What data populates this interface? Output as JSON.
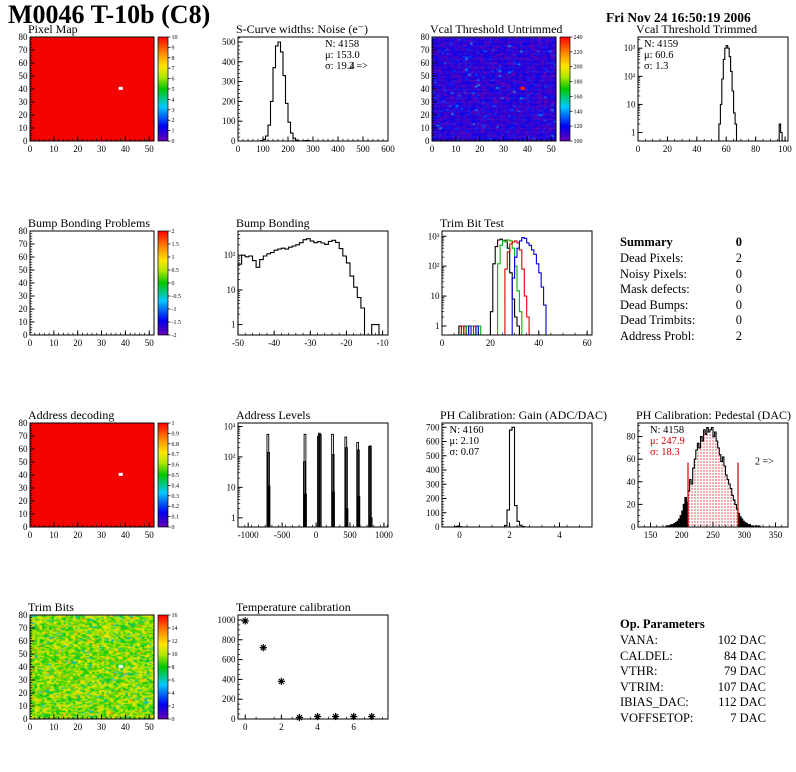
{
  "page": {
    "title": "M0046 T-10b (C8)",
    "date": "Fri Nov 24 16:50:19 2006"
  },
  "summary": {
    "title": "Summary",
    "value": "0",
    "rows": [
      {
        "label": "Dead Pixels:",
        "value": "2"
      },
      {
        "label": "Noisy Pixels:",
        "value": "0"
      },
      {
        "label": "Mask defects:",
        "value": "0"
      },
      {
        "label": "Dead Bumps:",
        "value": "0"
      },
      {
        "label": "Dead Trimbits:",
        "value": "0"
      },
      {
        "label": "Address Probl:",
        "value": "2"
      }
    ]
  },
  "op_parameters": {
    "title": "Op. Parameters",
    "rows": [
      {
        "label": "VANA:",
        "value": "102 DAC"
      },
      {
        "label": "CALDEL:",
        "value": "84 DAC"
      },
      {
        "label": "VTHR:",
        "value": "79 DAC"
      },
      {
        "label": "VTRIM:",
        "value": "107 DAC"
      },
      {
        "label": "IBIAS_DAC:",
        "value": "112 DAC"
      },
      {
        "label": "VOFFSETOP:",
        "value": "7 DAC"
      }
    ]
  },
  "palette": [
    "#6a00b0",
    "#0000f0",
    "#00c8ff",
    "#00c800",
    "#b4e600",
    "#ffe600",
    "#ff8c00",
    "#ff0000"
  ],
  "chart_data": [
    {
      "id": "pixel_map",
      "type": "heatmap",
      "title": "Pixel Map",
      "fill": "#f40400",
      "x": {
        "min": 0,
        "max": 52,
        "ticks": [
          0,
          10,
          20,
          30,
          40,
          50
        ],
        "minor": 2
      },
      "y": {
        "min": 0,
        "max": 80,
        "ticks": [
          0,
          10,
          20,
          30,
          40,
          50,
          60,
          70,
          80
        ],
        "minor": 2
      },
      "defects": [
        {
          "x": 38,
          "y": 40,
          "color": "#ffffff"
        }
      ],
      "colorbar": {
        "min": 0,
        "max": 10,
        "labels": [
          0,
          1,
          2,
          3,
          4,
          5,
          6,
          7,
          8,
          9,
          10
        ]
      }
    },
    {
      "id": "scurve_noise",
      "type": "hist",
      "title": "S-Curve widths: Noise (e⁻)",
      "x": {
        "min": 0,
        "max": 600,
        "ticks": [
          0,
          100,
          200,
          300,
          400,
          500,
          600
        ],
        "minor": 20
      },
      "y": {
        "min": 0,
        "max": 525,
        "ticks": [
          0,
          100,
          200,
          300,
          400,
          500
        ],
        "minor": 20
      },
      "bins": {
        "x0": 90,
        "w": 10,
        "v": [
          2,
          8,
          25,
          80,
          200,
          370,
          480,
          500,
          450,
          330,
          190,
          95,
          40,
          14,
          4,
          1,
          0,
          1,
          2,
          1
        ]
      },
      "stats": {
        "fx": 0.58,
        "lines": [
          {
            "t": "N: 4158",
            "c": "#000000"
          },
          {
            "t": "μ: 153.0",
            "c": "#000000"
          },
          {
            "t": "σ: 19.4",
            "c": "#000000"
          }
        ],
        "extra": {
          "t": "2 =>",
          "fx": 0.74,
          "fy": 0.31
        }
      }
    },
    {
      "id": "vcal_untrimmed",
      "type": "heatmap",
      "title": "Vcal Threshold Untrimmed",
      "fill": "noise-vcal",
      "x": {
        "min": 0,
        "max": 52,
        "ticks": [
          0,
          10,
          20,
          30,
          40,
          50
        ],
        "minor": 2
      },
      "y": {
        "min": 0,
        "max": 80,
        "ticks": [
          0,
          10,
          20,
          30,
          40,
          50,
          60,
          70,
          80
        ],
        "minor": 2
      },
      "defects": [
        {
          "x": 38,
          "y": 40,
          "color": "#ff2000"
        }
      ],
      "colorbar": {
        "min": 100,
        "max": 240,
        "labels": [
          100,
          120,
          140,
          160,
          180,
          200,
          220,
          240
        ]
      }
    },
    {
      "id": "vcal_trimmed",
      "type": "hist",
      "title": "Vcal Threshold Trimmed",
      "x": {
        "min": 0,
        "max": 102,
        "ticks": [
          0,
          20,
          40,
          60,
          80,
          100
        ],
        "minor": 5
      },
      "y": {
        "log": true,
        "min": 0.5,
        "max": 2500
      },
      "bins": {
        "x0": 55,
        "w": 1,
        "v": [
          2,
          10,
          80,
          400,
          1000,
          1250,
          1000,
          500,
          150,
          30,
          5,
          2,
          0,
          0,
          0,
          0,
          0,
          0,
          0,
          0,
          0,
          0,
          0,
          0,
          0,
          0,
          0,
          0,
          0,
          0,
          0,
          0,
          0,
          0,
          0,
          0,
          0,
          0,
          0,
          0,
          0,
          2,
          1
        ]
      },
      "stats": {
        "fx": 0.04,
        "lines": [
          {
            "t": "N: 4159",
            "c": "#000000"
          },
          {
            "t": "μ: 60.6",
            "c": "#000000"
          },
          {
            "t": "σ:  1.3",
            "c": "#000000"
          }
        ]
      }
    },
    {
      "id": "bump_problems",
      "type": "heatmap",
      "title": "Bump Bonding Problems",
      "fill": "none",
      "x": {
        "min": 0,
        "max": 52,
        "ticks": [
          0,
          10,
          20,
          30,
          40,
          50
        ],
        "minor": 2
      },
      "y": {
        "min": 0,
        "max": 80,
        "ticks": [
          0,
          10,
          20,
          30,
          40,
          50,
          60,
          70,
          80
        ],
        "minor": 2
      },
      "defects": [],
      "colorbar": {
        "min": -2,
        "max": 2,
        "labels": [
          -2,
          -1.5,
          -1,
          -0.5,
          0,
          0.5,
          1,
          1.5,
          2
        ]
      }
    },
    {
      "id": "bump_bonding",
      "type": "hist",
      "title": "Bump Bonding",
      "x": {
        "min": -50,
        "max": -8.5,
        "ticks": [
          -50,
          -40,
          -30,
          -20,
          -10
        ],
        "minor": 2
      },
      "y": {
        "log": true,
        "min": 0.5,
        "max": 500
      },
      "bins": {
        "x0": -50,
        "w": 1,
        "v": [
          55,
          100,
          90,
          95,
          70,
          45,
          75,
          95,
          110,
          120,
          140,
          150,
          160,
          150,
          170,
          185,
          200,
          230,
          280,
          300,
          255,
          230,
          245,
          225,
          205,
          250,
          270,
          235,
          155,
          95,
          60,
          25,
          12,
          6,
          3,
          0,
          0,
          1,
          1,
          0
        ]
      }
    },
    {
      "id": "trim_bit_test",
      "type": "multihist",
      "title": "Trim Bit Test",
      "x": {
        "min": 0,
        "max": 62,
        "ticks": [
          0,
          20,
          40,
          60
        ],
        "minor": 5
      },
      "y": {
        "log": true,
        "min": 0.5,
        "max": 1500
      },
      "series": [
        {
          "color": "#000000",
          "x0": 7,
          "v": [
            1,
            0,
            1,
            0,
            0,
            0,
            0,
            0,
            0,
            0,
            0,
            0,
            0,
            3,
            120,
            450,
            750,
            800,
            700,
            740,
            400,
            60,
            8,
            2,
            1
          ]
        },
        {
          "color": "#00b400",
          "x0": 10,
          "v": [
            1,
            0,
            1,
            0,
            0,
            1,
            0,
            0,
            0,
            0,
            0,
            0,
            0,
            120,
            500,
            700,
            650,
            750,
            700,
            400,
            100,
            15,
            3
          ]
        },
        {
          "color": "#e00000",
          "x0": 8,
          "v": [
            1,
            0,
            0,
            0,
            0,
            1,
            0,
            0,
            0,
            0,
            0,
            0,
            0,
            0,
            0,
            0,
            0,
            0,
            80,
            300,
            550,
            650,
            700,
            600,
            350,
            80,
            10,
            2
          ]
        },
        {
          "color": "#0000e0",
          "x0": 11,
          "v": [
            1,
            0,
            0,
            1,
            0,
            0,
            0,
            0,
            0,
            0,
            0,
            0,
            0,
            0,
            0,
            0,
            0,
            0,
            40,
            200,
            400,
            700,
            900,
            850,
            600,
            500,
            350,
            250,
            120,
            60,
            20,
            5
          ]
        }
      ]
    },
    {
      "id": "address_decoding",
      "type": "heatmap",
      "title": "Address decoding",
      "fill": "#f40400",
      "x": {
        "min": 0,
        "max": 52,
        "ticks": [
          0,
          10,
          20,
          30,
          40,
          50
        ],
        "minor": 2
      },
      "y": {
        "min": 0,
        "max": 80,
        "ticks": [
          0,
          10,
          20,
          30,
          40,
          50,
          60,
          70,
          80
        ],
        "minor": 2
      },
      "defects": [
        {
          "x": 38,
          "y": 40,
          "color": "#ffffff"
        }
      ],
      "colorbar": {
        "min": 0,
        "max": 1,
        "labels": [
          0,
          0.1,
          0.2,
          0.3,
          0.4,
          0.5,
          0.6,
          0.7,
          0.8,
          0.9,
          1
        ]
      }
    },
    {
      "id": "address_levels",
      "type": "spikes",
      "title": "Address Levels",
      "x": {
        "min": -1150,
        "max": 1060,
        "ticks": [
          -1000,
          -500,
          0,
          500,
          1000
        ],
        "minor": 100
      },
      "y": {
        "log": true,
        "min": 0.5,
        "max": 1300
      },
      "spikes": [
        [
          -710,
          550
        ],
        [
          -700,
          140
        ],
        [
          -693,
          11
        ],
        [
          -172,
          70
        ],
        [
          -163,
          550
        ],
        [
          -155,
          6
        ],
        [
          35,
          480
        ],
        [
          48,
          600
        ],
        [
          62,
          550
        ],
        [
          243,
          550
        ],
        [
          252,
          120
        ],
        [
          258,
          7
        ],
        [
          438,
          450
        ],
        [
          448,
          200
        ],
        [
          456,
          2
        ],
        [
          613,
          300
        ],
        [
          623,
          170
        ],
        [
          631,
          5
        ],
        [
          788,
          220
        ],
        [
          800,
          230
        ],
        [
          812,
          1
        ]
      ]
    },
    {
      "id": "ph_gain",
      "type": "hist",
      "title": "PH Calibration: Gain (ADC/DAC)",
      "x": {
        "min": -0.7,
        "max": 5.3,
        "ticks": [
          0,
          2,
          4
        ],
        "minor": 0.5
      },
      "y": {
        "min": 0,
        "max": 730,
        "ticks": [
          0,
          100,
          200,
          300,
          400,
          500,
          600,
          700
        ],
        "minor": 20
      },
      "bins": {
        "x0": -0.2,
        "w": 0.1,
        "v": [
          3,
          6,
          2,
          0,
          0,
          0,
          0,
          0,
          0,
          0,
          0,
          0,
          0,
          0,
          0,
          0,
          0,
          0,
          0,
          0,
          10,
          120,
          680,
          700,
          150,
          40,
          12,
          3
        ]
      },
      "stats": {
        "fx": 0.05,
        "lines": [
          {
            "t": "N: 4160",
            "c": "#000000"
          },
          {
            "t": "μ: 2.10",
            "c": "#000000"
          },
          {
            "t": "σ: 0.07",
            "c": "#000000"
          }
        ]
      }
    },
    {
      "id": "ph_pedestal",
      "type": "hist",
      "title": "PH Calibration: Pedestal (DAC)",
      "fill_pattern": true,
      "x": {
        "min": 130,
        "max": 370,
        "ticks": [
          150,
          200,
          250,
          300,
          350
        ],
        "minor": 10
      },
      "y": {
        "min": 0,
        "max": 92,
        "ticks": [
          0,
          20,
          40,
          60,
          80
        ],
        "minor": 5
      },
      "range_lines": {
        "x": [
          210,
          290
        ],
        "h": 57,
        "color": "#d40000"
      },
      "bins": {
        "x0": 175,
        "w": 2.5,
        "v": [
          1,
          1,
          1,
          2,
          2,
          3,
          4,
          5,
          7,
          10,
          14,
          20,
          26,
          22,
          32,
          42,
          38,
          52,
          60,
          68,
          74,
          70,
          80,
          76,
          86,
          82,
          88,
          84,
          86,
          88,
          80,
          84,
          76,
          70,
          64,
          58,
          62,
          54,
          46,
          42,
          38,
          34,
          28,
          24,
          20,
          16,
          12,
          9,
          7,
          5,
          4,
          3,
          2,
          2,
          1,
          1,
          0,
          1,
          0,
          1
        ]
      },
      "stats": {
        "fx": 0.08,
        "lines": [
          {
            "t": "N: 4158",
            "c": "#000000"
          },
          {
            "t": "μ: 247.9",
            "c": "#d40000"
          },
          {
            "t": "σ: 18.3",
            "c": "#d40000"
          }
        ],
        "extra": {
          "t": "2 =>",
          "fx": 0.78,
          "fy": 0.4
        }
      }
    },
    {
      "id": "trim_bits",
      "type": "heatmap",
      "title": "Trim Bits",
      "fill": "noise-trim",
      "x": {
        "min": 0,
        "max": 52,
        "ticks": [
          0,
          10,
          20,
          30,
          40,
          50
        ],
        "minor": 2
      },
      "y": {
        "min": 0,
        "max": 80,
        "ticks": [
          0,
          10,
          20,
          30,
          40,
          50,
          60,
          70,
          80
        ],
        "minor": 2
      },
      "defects": [
        {
          "x": 38,
          "y": 40,
          "color": "#ffffff"
        }
      ],
      "colorbar": {
        "min": 0,
        "max": 16,
        "labels": [
          0,
          2,
          4,
          6,
          8,
          10,
          12,
          14,
          16
        ]
      }
    },
    {
      "id": "temp_cal",
      "type": "scatter",
      "title": "Temperature calibration",
      "x": {
        "min": -0.4,
        "max": 7.9,
        "ticks": [
          0,
          2,
          4,
          6
        ],
        "minor": 1
      },
      "y": {
        "min": 0,
        "max": 1050,
        "ticks": [
          0,
          200,
          400,
          600,
          800,
          1000
        ],
        "minor": 50
      },
      "points": [
        [
          0,
          990
        ],
        [
          1,
          720
        ],
        [
          2,
          380
        ],
        [
          3,
          15
        ],
        [
          4,
          25
        ],
        [
          5,
          25
        ],
        [
          6,
          25
        ],
        [
          7,
          25
        ]
      ]
    }
  ]
}
